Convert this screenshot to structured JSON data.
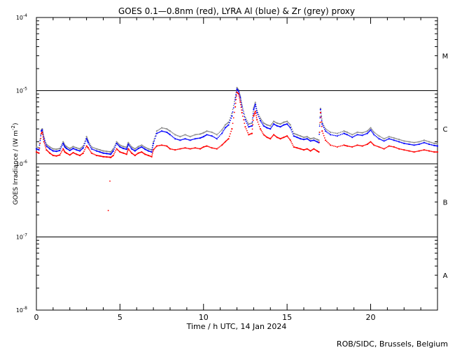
{
  "chart_data": {
    "type": "line",
    "title": "GOES 0.1—0.8nm (red), LYRA Al (blue) & Zr (grey) proxy",
    "xlabel": "Time / h UTC, 14 Jan 2024",
    "ylabel": "GOES Irradiance / (W m",
    "ylabel_sup": "-2",
    "ylabel_close": ")",
    "credit": "ROB/SIDC, Brussels, Belgium",
    "xlim": [
      0,
      24
    ],
    "ylim": [
      1e-08,
      0.0001
    ],
    "yscale": "log",
    "x_ticks": [
      "0",
      "5",
      "10",
      "15",
      "20"
    ],
    "x_tick_values": [
      0,
      5,
      10,
      15,
      20
    ],
    "y_ticks": [
      {
        "value": 0.0001,
        "base": "10",
        "exp": "-4"
      },
      {
        "value": 1e-05,
        "base": "10",
        "exp": "-5"
      },
      {
        "value": 1e-06,
        "base": "10",
        "exp": "-6"
      },
      {
        "value": 1e-07,
        "base": "10",
        "exp": "-7"
      },
      {
        "value": 1e-08,
        "base": "10",
        "exp": "-8"
      }
    ],
    "flare_classes": [
      {
        "label": "M",
        "value": 3e-05
      },
      {
        "label": "C",
        "value": 3e-06
      },
      {
        "label": "B",
        "value": 3e-07
      },
      {
        "label": "A",
        "value": 3e-08
      }
    ],
    "threshold_lines": [
      1e-05,
      1e-06,
      1e-07
    ],
    "series": [
      {
        "color": "#ff0000",
        "x": [
          0.0,
          0.15,
          0.3,
          0.35,
          0.45,
          0.6,
          0.8,
          1.0,
          1.2,
          1.4,
          1.6,
          1.7,
          1.8,
          2.0,
          2.2,
          2.4,
          2.6,
          2.8,
          3.0,
          3.1,
          3.3,
          3.6,
          3.8,
          4.0,
          4.2,
          4.4,
          4.45,
          4.6,
          4.8,
          5.0,
          5.2,
          5.4,
          5.5,
          5.7,
          5.9,
          6.1,
          6.3,
          6.5,
          6.7,
          6.9,
          7.0,
          7.2,
          7.5,
          7.8,
          8.0,
          8.3,
          8.6,
          8.9,
          9.2,
          9.5,
          9.8,
          10.0,
          10.2,
          10.5,
          10.8,
          11.1,
          11.3,
          11.5,
          11.7,
          11.9,
          12.0,
          12.1,
          12.2,
          12.3,
          12.5,
          12.7,
          12.9,
          13.0,
          13.1,
          13.2,
          13.4,
          13.6,
          13.8,
          14.0,
          14.2,
          14.4,
          14.6,
          14.8,
          15.0,
          15.2,
          15.4,
          15.6,
          15.8,
          16.0,
          16.2,
          16.4,
          16.6,
          16.8,
          16.9,
          17.0,
          17.1,
          17.3,
          17.6,
          18.0,
          18.4,
          18.6,
          18.9,
          19.2,
          19.5,
          19.8,
          20.0,
          20.2,
          20.5,
          20.8,
          21.1,
          21.4,
          21.7,
          22.0,
          22.3,
          22.6,
          22.9,
          23.2,
          23.5,
          23.8,
          24.0
        ],
        "y": [
          1.45e-06,
          1.4e-06,
          2.6e-06,
          2.7e-06,
          2e-06,
          1.55e-06,
          1.4e-06,
          1.3e-06,
          1.28e-06,
          1.32e-06,
          1.6e-06,
          1.45e-06,
          1.4e-06,
          1.32e-06,
          1.42e-06,
          1.35e-06,
          1.3e-06,
          1.4e-06,
          1.75e-06,
          1.65e-06,
          1.4e-06,
          1.3e-06,
          1.28e-06,
          1.25e-06,
          1.24e-06,
          1.23e-06,
          1.22e-06,
          1.3e-06,
          1.6e-06,
          1.45e-06,
          1.4e-06,
          1.35e-06,
          1.6e-06,
          1.4e-06,
          1.3e-06,
          1.4e-06,
          1.45e-06,
          1.35e-06,
          1.3e-06,
          1.25e-06,
          1.55e-06,
          1.75e-06,
          1.8e-06,
          1.75e-06,
          1.6e-06,
          1.55e-06,
          1.6e-06,
          1.65e-06,
          1.6e-06,
          1.65e-06,
          1.6e-06,
          1.7e-06,
          1.75e-06,
          1.65e-06,
          1.6e-06,
          1.8e-06,
          2e-06,
          2.2e-06,
          3e-06,
          6e-06,
          9.5e-06,
          9e-06,
          7e-06,
          5e-06,
          3.2e-06,
          2.5e-06,
          2.6e-06,
          4.5e-06,
          5.2e-06,
          4e-06,
          3e-06,
          2.5e-06,
          2.3e-06,
          2.2e-06,
          2.5e-06,
          2.3e-06,
          2.2e-06,
          2.3e-06,
          2.4e-06,
          2.1e-06,
          1.7e-06,
          1.65e-06,
          1.6e-06,
          1.55e-06,
          1.6e-06,
          1.5e-06,
          1.6e-06,
          1.5e-06,
          1.45e-06,
          5e-06,
          2.8e-06,
          2.1e-06,
          1.8e-06,
          1.7e-06,
          1.8e-06,
          1.75e-06,
          1.7e-06,
          1.8e-06,
          1.75e-06,
          1.85e-06,
          2e-06,
          1.8e-06,
          1.7e-06,
          1.6e-06,
          1.75e-06,
          1.7e-06,
          1.6e-06,
          1.55e-06,
          1.5e-06,
          1.45e-06,
          1.5e-06,
          1.55e-06,
          1.5e-06,
          1.45e-06,
          1.45e-06
        ]
      },
      {
        "color": "#0000ff",
        "x": [
          0.0,
          0.15,
          0.3,
          0.35,
          0.45,
          0.6,
          0.8,
          1.0,
          1.2,
          1.4,
          1.6,
          1.7,
          1.8,
          2.0,
          2.2,
          2.4,
          2.6,
          2.8,
          3.0,
          3.1,
          3.3,
          3.6,
          3.8,
          4.0,
          4.2,
          4.4,
          4.45,
          4.6,
          4.8,
          5.0,
          5.2,
          5.4,
          5.5,
          5.7,
          5.9,
          6.1,
          6.3,
          6.5,
          6.7,
          6.9,
          7.0,
          7.2,
          7.5,
          7.8,
          8.0,
          8.3,
          8.6,
          8.9,
          9.2,
          9.5,
          9.8,
          10.0,
          10.2,
          10.5,
          10.8,
          11.1,
          11.3,
          11.5,
          11.7,
          11.9,
          12.0,
          12.1,
          12.2,
          12.3,
          12.5,
          12.7,
          12.9,
          13.0,
          13.1,
          13.2,
          13.4,
          13.6,
          13.8,
          14.0,
          14.2,
          14.4,
          14.6,
          14.8,
          15.0,
          15.2,
          15.4,
          15.6,
          15.8,
          16.0,
          16.2,
          16.4,
          16.6,
          16.8,
          16.9,
          17.0,
          17.1,
          17.3,
          17.6,
          18.0,
          18.4,
          18.6,
          18.9,
          19.2,
          19.5,
          19.8,
          20.0,
          20.2,
          20.5,
          20.8,
          21.1,
          21.4,
          21.7,
          22.0,
          22.3,
          22.6,
          22.9,
          23.2,
          23.5,
          23.8,
          24.0
        ],
        "y": [
          1.6e-06,
          1.55e-06,
          2.8e-06,
          2.9e-06,
          2.2e-06,
          1.75e-06,
          1.6e-06,
          1.5e-06,
          1.48e-06,
          1.52e-06,
          1.9e-06,
          1.7e-06,
          1.62e-06,
          1.52e-06,
          1.62e-06,
          1.55e-06,
          1.5e-06,
          1.65e-06,
          2.2e-06,
          1.95e-06,
          1.6e-06,
          1.5e-06,
          1.45e-06,
          1.4e-06,
          1.38e-06,
          1.36e-06,
          1.35e-06,
          1.5e-06,
          1.9e-06,
          1.7e-06,
          1.62e-06,
          1.58e-06,
          1.85e-06,
          1.6e-06,
          1.5e-06,
          1.62e-06,
          1.7e-06,
          1.58e-06,
          1.5e-06,
          1.45e-06,
          1.9e-06,
          2.6e-06,
          2.8e-06,
          2.7e-06,
          2.5e-06,
          2.2e-06,
          2.1e-06,
          2.2e-06,
          2.1e-06,
          2.2e-06,
          2.25e-06,
          2.35e-06,
          2.5e-06,
          2.4e-06,
          2.2e-06,
          2.6e-06,
          3.1e-06,
          3.4e-06,
          4.5e-06,
          7.5e-06,
          1.05e-05,
          9.8e-06,
          8e-06,
          6e-06,
          4e-06,
          3.2e-06,
          3.3e-06,
          5.5e-06,
          6.5e-06,
          5e-06,
          3.9e-06,
          3.3e-06,
          3.1e-06,
          3e-06,
          3.5e-06,
          3.3e-06,
          3.2e-06,
          3.4e-06,
          3.5e-06,
          3.1e-06,
          2.4e-06,
          2.3e-06,
          2.2e-06,
          2.15e-06,
          2.2e-06,
          2.05e-06,
          2.1e-06,
          2e-06,
          1.95e-06,
          5.5e-06,
          3.5e-06,
          2.8e-06,
          2.5e-06,
          2.4e-06,
          2.6e-06,
          2.5e-06,
          2.3e-06,
          2.5e-06,
          2.45e-06,
          2.6e-06,
          2.9e-06,
          2.5e-06,
          2.2e-06,
          2.05e-06,
          2.2e-06,
          2.1e-06,
          2e-06,
          1.9e-06,
          1.85e-06,
          1.8e-06,
          1.85e-06,
          1.95e-06,
          1.85e-06,
          1.78e-06,
          1.75e-06
        ]
      },
      {
        "color": "#8a8a8a",
        "x": [
          0.0,
          0.15,
          0.3,
          0.35,
          0.45,
          0.6,
          0.8,
          1.0,
          1.2,
          1.4,
          1.6,
          1.7,
          1.8,
          2.0,
          2.2,
          2.4,
          2.6,
          2.8,
          3.0,
          3.1,
          3.3,
          3.6,
          3.8,
          4.0,
          4.2,
          4.4,
          4.45,
          4.6,
          4.8,
          5.0,
          5.2,
          5.4,
          5.5,
          5.7,
          5.9,
          6.1,
          6.3,
          6.5,
          6.7,
          6.9,
          7.0,
          7.2,
          7.5,
          7.8,
          8.0,
          8.3,
          8.6,
          8.9,
          9.2,
          9.5,
          9.8,
          10.0,
          10.2,
          10.5,
          10.8,
          11.1,
          11.3,
          11.5,
          11.7,
          11.9,
          12.0,
          12.1,
          12.2,
          12.3,
          12.5,
          12.7,
          12.9,
          13.0,
          13.1,
          13.2,
          13.4,
          13.6,
          13.8,
          14.0,
          14.2,
          14.4,
          14.6,
          14.8,
          15.0,
          15.2,
          15.4,
          15.6,
          15.8,
          16.0,
          16.2,
          16.4,
          16.6,
          16.8,
          16.9,
          17.0,
          17.1,
          17.3,
          17.6,
          18.0,
          18.4,
          18.6,
          18.9,
          19.2,
          19.5,
          19.8,
          20.0,
          20.2,
          20.5,
          20.8,
          21.1,
          21.4,
          21.7,
          22.0,
          22.3,
          22.6,
          22.9,
          23.2,
          23.5,
          23.8,
          24.0
        ],
        "y": [
          1.7e-06,
          1.65e-06,
          2.9e-06,
          3e-06,
          2.3e-06,
          1.85e-06,
          1.7e-06,
          1.6e-06,
          1.58e-06,
          1.62e-06,
          2e-06,
          1.8e-06,
          1.72e-06,
          1.62e-06,
          1.72e-06,
          1.65e-06,
          1.6e-06,
          1.75e-06,
          2.35e-06,
          2.05e-06,
          1.7e-06,
          1.6e-06,
          1.55e-06,
          1.5e-06,
          1.48e-06,
          1.46e-06,
          1.45e-06,
          1.6e-06,
          2e-06,
          1.8e-06,
          1.72e-06,
          1.68e-06,
          1.95e-06,
          1.7e-06,
          1.6e-06,
          1.72e-06,
          1.8e-06,
          1.68e-06,
          1.6e-06,
          1.55e-06,
          2e-06,
          2.8e-06,
          3.1e-06,
          3e-06,
          2.8e-06,
          2.5e-06,
          2.35e-06,
          2.5e-06,
          2.35e-06,
          2.5e-06,
          2.55e-06,
          2.65e-06,
          2.8e-06,
          2.7e-06,
          2.5e-06,
          2.9e-06,
          3.4e-06,
          3.7e-06,
          4.9e-06,
          8e-06,
          1.1e-05,
          1.02e-05,
          8.4e-06,
          6.3e-06,
          4.3e-06,
          3.5e-06,
          3.6e-06,
          5.8e-06,
          6.9e-06,
          5.3e-06,
          4.2e-06,
          3.6e-06,
          3.4e-06,
          3.3e-06,
          3.8e-06,
          3.6e-06,
          3.5e-06,
          3.7e-06,
          3.8e-06,
          3.4e-06,
          2.6e-06,
          2.5e-06,
          2.4e-06,
          2.3e-06,
          2.35e-06,
          2.2e-06,
          2.25e-06,
          2.15e-06,
          2.1e-06,
          5.7e-06,
          3.7e-06,
          3e-06,
          2.7e-06,
          2.6e-06,
          2.8e-06,
          2.7e-06,
          2.5e-06,
          2.7e-06,
          2.65e-06,
          2.8e-06,
          3.1e-06,
          2.7e-06,
          2.4e-06,
          2.2e-06,
          2.35e-06,
          2.25e-06,
          2.15e-06,
          2.05e-06,
          2e-06,
          1.95e-06,
          2e-06,
          2.1e-06,
          2e-06,
          1.9e-06,
          1.88e-06
        ]
      }
    ],
    "outliers": [
      {
        "x": 4.3,
        "y": 2.3e-07,
        "color": "#ff0000"
      },
      {
        "x": 4.4,
        "y": 5.8e-07,
        "color": "#ff0000"
      }
    ]
  }
}
